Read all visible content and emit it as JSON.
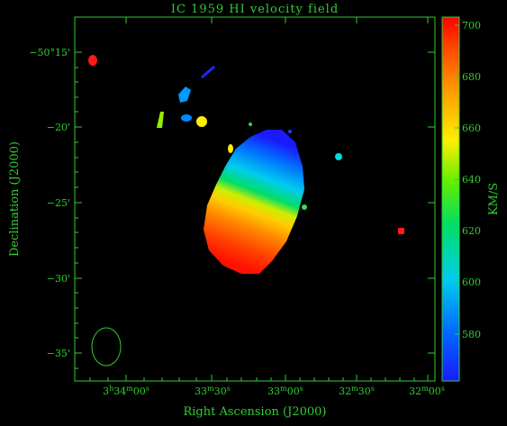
{
  "title": "IC 1959   HI velocity field",
  "chart_data": {
    "type": "heatmap",
    "title": "IC 1959   HI velocity field",
    "xlabel": "Right Ascension (J2000)",
    "ylabel": "Declination (J2000)",
    "colorbar_label": "KM/S",
    "colorbar_range": [
      560,
      704
    ],
    "colorbar_ticks": [
      580,
      600,
      620,
      640,
      660,
      680,
      700
    ],
    "colormap": [
      "#1a1aff",
      "#0088ff",
      "#00e5e5",
      "#00dd55",
      "#aaff00",
      "#ffee00",
      "#ff9900",
      "#ff3300",
      "#ff0000"
    ],
    "x_ticks": [
      {
        "value": "3h34m00s",
        "h": "3",
        "m": "34",
        "s": "00"
      },
      {
        "value": "33m30s",
        "m": "33",
        "s": "30"
      },
      {
        "value": "33m00s",
        "m": "33",
        "s": "00"
      },
      {
        "value": "32m30s",
        "m": "32",
        "s": "30"
      },
      {
        "value": "32m00s",
        "m": "32",
        "s": "00"
      }
    ],
    "y_ticks": [
      "−50°15'",
      "−20'",
      "−25'",
      "−30'",
      "−35'"
    ],
    "features": [
      {
        "name": "galaxy",
        "velocity_range": [
          575,
          704
        ],
        "gradient": "blue (north) to red (south)"
      },
      {
        "name": "beam",
        "shape": "ellipse",
        "location": "bottom-left"
      }
    ]
  }
}
